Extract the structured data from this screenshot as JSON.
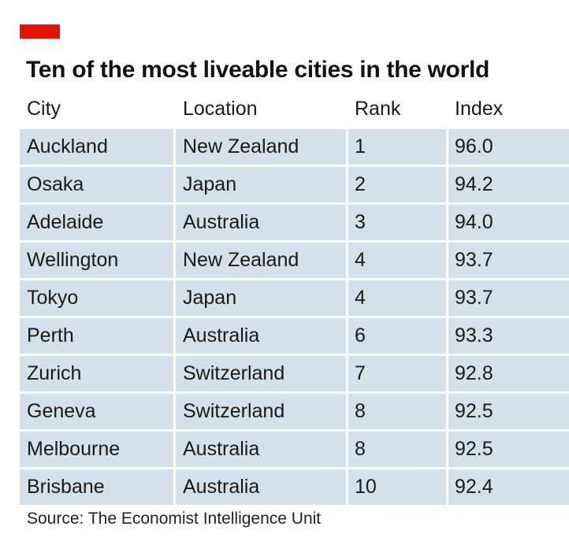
{
  "title": "Ten of the most liveable cities in the world",
  "source": "Source: The Economist Intelligence Unit",
  "colors": {
    "accent": "#e3120b",
    "row_background": "#d5e0e8"
  },
  "chart_data": {
    "type": "table",
    "title": "Ten of the most liveable cities in the world",
    "columns": [
      "City",
      "Location",
      "Rank",
      "Index"
    ],
    "rows": [
      [
        "Auckland",
        "New Zealand",
        "1",
        "96.0"
      ],
      [
        "Osaka",
        "Japan",
        "2",
        "94.2"
      ],
      [
        "Adelaide",
        "Australia",
        "3",
        "94.0"
      ],
      [
        "Wellington",
        "New Zealand",
        "4",
        "93.7"
      ],
      [
        "Tokyo",
        "Japan",
        "4",
        "93.7"
      ],
      [
        "Perth",
        "Australia",
        "6",
        "93.3"
      ],
      [
        "Zurich",
        "Switzerland",
        "7",
        "92.8"
      ],
      [
        "Geneva",
        "Switzerland",
        "8",
        "92.5"
      ],
      [
        "Melbourne",
        "Australia",
        "8",
        "92.5"
      ],
      [
        "Brisbane",
        "Australia",
        "10",
        "92.4"
      ]
    ],
    "source": "Source: The Economist Intelligence Unit"
  }
}
